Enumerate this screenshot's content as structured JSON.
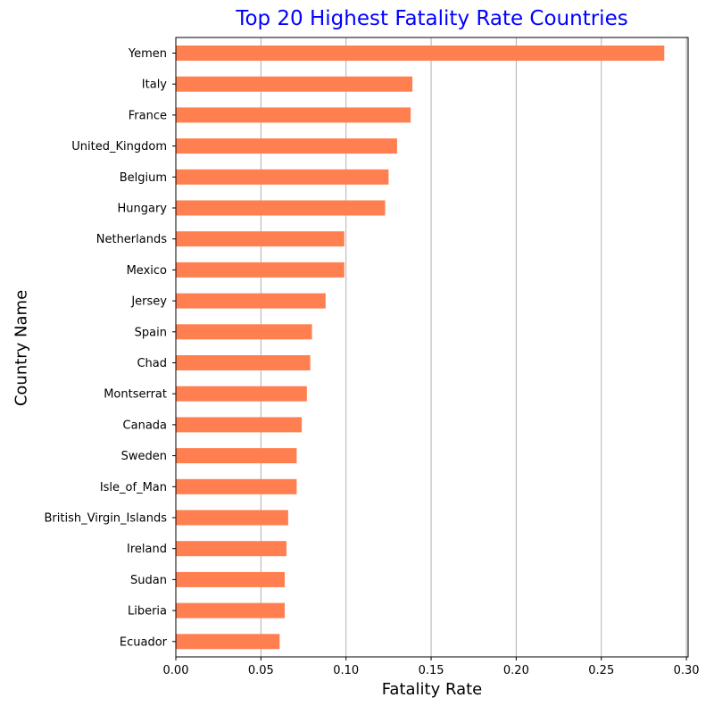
{
  "chart_data": {
    "type": "bar",
    "orientation": "horizontal",
    "title": "Top 20 Highest Fatality Rate Countries",
    "xlabel": "Fatality Rate",
    "ylabel": "Country Name",
    "categories": [
      "Yemen",
      "Italy",
      "France",
      "United_Kingdom",
      "Belgium",
      "Hungary",
      "Netherlands",
      "Mexico",
      "Jersey",
      "Spain",
      "Chad",
      "Montserrat",
      "Canada",
      "Sweden",
      "Isle_of_Man",
      "British_Virgin_Islands",
      "Ireland",
      "Sudan",
      "Liberia",
      "Ecuador"
    ],
    "values": [
      0.287,
      0.139,
      0.138,
      0.13,
      0.125,
      0.123,
      0.099,
      0.099,
      0.088,
      0.08,
      0.079,
      0.077,
      0.074,
      0.071,
      0.071,
      0.066,
      0.065,
      0.064,
      0.064,
      0.061
    ],
    "xlim": [
      0,
      0.301
    ],
    "xticks": [
      "0.00",
      "0.05",
      "0.10",
      "0.15",
      "0.20",
      "0.25",
      "0.30"
    ],
    "xtick_values": [
      0,
      0.05,
      0.1,
      0.15,
      0.2,
      0.25,
      0.3
    ],
    "grid": "x-axis vertical lines",
    "colors": {
      "bar": "#ff7f50",
      "title": "#0000ff",
      "grid": "#b0b0b0",
      "axis": "#000000"
    }
  }
}
